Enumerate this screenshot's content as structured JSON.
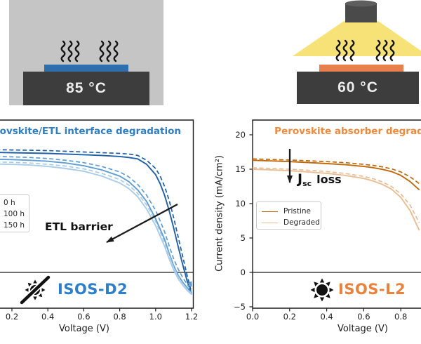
{
  "illustrations": {
    "dark_heat": {
      "temperature": "85 °C",
      "background": "#c5c5c5",
      "hotplate_color": "#3d3d3d",
      "sample_color": "#2f6fad"
    },
    "light_heat": {
      "temperature": "60 °C",
      "hotplate_color": "#3d3d3d",
      "sample_color": "#e8804e",
      "lamp_color": "#4a4a4a",
      "beam_color": "#f6e276"
    }
  },
  "chart_data": [
    {
      "id": "ISOS-D2",
      "type": "line",
      "title": "Perovskite/ETL interface degradation",
      "title_color": "#2d7ec4",
      "xlabel": "Voltage (V)",
      "x_ticks": [
        0.2,
        0.4,
        0.6,
        0.8,
        1.0,
        1.2
      ],
      "x_tick_labels": [
        "0.2",
        "0.4",
        "0.6",
        "0.8",
        "1.0",
        "1.2"
      ],
      "ylim": [
        -5.3,
        22.1
      ],
      "grid": false,
      "legend": {
        "position": "center-left",
        "entries": [
          "0 h",
          "100 h",
          "150 h"
        ]
      },
      "annotation": {
        "text": "ETL barrier"
      },
      "badge": {
        "label": "ISOS-D2",
        "icon": "crossed-sun-icon",
        "color": "#2e7fc9"
      },
      "x": [
        0,
        0.1,
        0.2,
        0.3,
        0.4,
        0.5,
        0.6,
        0.7,
        0.8,
        0.85,
        0.9,
        0.95,
        1.0,
        1.025,
        1.05,
        1.075,
        1.1,
        1.125,
        1.15,
        1.175,
        1.2
      ],
      "series": [
        {
          "name": "0 h",
          "style": "dashed",
          "color": "#1e5fa6",
          "y": [
            17.9,
            17.85,
            17.8,
            17.75,
            17.7,
            17.6,
            17.5,
            17.4,
            17.3,
            17.2,
            17.0,
            16.3,
            15.1,
            14.0,
            12.5,
            10.5,
            8.0,
            5.2,
            2.4,
            -0.4,
            -2.9
          ]
        },
        {
          "name": "0 h",
          "style": "solid",
          "color": "#1e5fa6",
          "y": [
            17.5,
            17.45,
            17.4,
            17.35,
            17.3,
            17.2,
            17.1,
            17.0,
            16.85,
            16.7,
            16.5,
            15.7,
            14.2,
            12.9,
            11.2,
            9.0,
            6.5,
            3.8,
            1.2,
            -1.2,
            -3.2
          ]
        },
        {
          "name": "100 h",
          "style": "dashed",
          "color": "#5f9dd3",
          "y": [
            16.9,
            16.85,
            16.8,
            16.7,
            16.55,
            16.3,
            15.95,
            15.4,
            14.6,
            13.9,
            12.8,
            11.2,
            9.0,
            7.5,
            5.9,
            3.9,
            2.0,
            0.5,
            -0.7,
            -1.7,
            -2.7
          ]
        },
        {
          "name": "100 h",
          "style": "solid",
          "color": "#5f9dd3",
          "y": [
            16.5,
            16.45,
            16.4,
            16.3,
            16.15,
            15.9,
            15.5,
            14.9,
            14.0,
            13.2,
            12.0,
            10.3,
            7.8,
            6.3,
            4.8,
            2.8,
            1.0,
            -0.4,
            -1.4,
            -2.2,
            -3.0
          ]
        },
        {
          "name": "150 h",
          "style": "dashed",
          "color": "#a9cce8",
          "y": [
            16.1,
            16.05,
            16.0,
            15.9,
            15.7,
            15.45,
            15.05,
            14.4,
            13.5,
            12.7,
            11.5,
            9.8,
            7.4,
            5.9,
            4.3,
            2.5,
            0.8,
            -0.6,
            -1.6,
            -2.4,
            -3.1
          ]
        },
        {
          "name": "150 h",
          "style": "solid",
          "color": "#a9cce8",
          "y": [
            15.8,
            15.75,
            15.7,
            15.6,
            15.4,
            15.1,
            14.7,
            14.0,
            13.0,
            12.2,
            11.0,
            9.2,
            6.8,
            5.3,
            3.8,
            2.0,
            0.4,
            -0.9,
            -1.8,
            -2.6,
            -3.2
          ]
        }
      ]
    },
    {
      "id": "ISOS-L2",
      "type": "line",
      "title": "Perovskite absorber degradation",
      "title_color": "#ed8a3d",
      "xlabel": "Voltage (V)",
      "ylabel": "Current density (mA/cm²)",
      "x_ticks": [
        0.0,
        0.2,
        0.4,
        0.6,
        0.8
      ],
      "x_tick_labels": [
        "0.0",
        "0.2",
        "0.4",
        "0.6",
        "0.8"
      ],
      "y_ticks": [
        20,
        15,
        10,
        5,
        0,
        -5
      ],
      "y_tick_labels": [
        "20",
        "15",
        "10",
        "5",
        "0",
        "−5"
      ],
      "ylim": [
        -5.3,
        22.1
      ],
      "grid": false,
      "legend": {
        "position": "center-left",
        "entries": [
          "Pristine",
          "Degraded"
        ],
        "entry_colors": [
          "#bf6a0c",
          "#eabd94"
        ]
      },
      "annotation": {
        "j": "J",
        "sub": "sc",
        "rest": "loss"
      },
      "badge": {
        "label": "ISOS-L2",
        "icon": "sun-icon",
        "color": "#e8823c"
      },
      "x": [
        0,
        0.1,
        0.2,
        0.3,
        0.4,
        0.5,
        0.6,
        0.65,
        0.7,
        0.75,
        0.8,
        0.85,
        0.9
      ],
      "series": [
        {
          "name": "Pristine",
          "style": "dashed",
          "color": "#bf6a0c",
          "y": [
            16.5,
            16.42,
            16.33,
            16.22,
            16.1,
            15.95,
            15.7,
            15.55,
            15.35,
            15.05,
            14.6,
            13.9,
            12.9
          ]
        },
        {
          "name": "Pristine",
          "style": "solid",
          "color": "#bf6a0c",
          "y": [
            16.3,
            16.2,
            16.1,
            15.97,
            15.82,
            15.65,
            15.4,
            15.22,
            14.98,
            14.65,
            14.1,
            13.2,
            12.0
          ]
        },
        {
          "name": "Degraded",
          "style": "dashed",
          "color": "#eabd94",
          "y": [
            15.2,
            15.1,
            15.0,
            14.85,
            14.65,
            14.38,
            13.95,
            13.62,
            13.15,
            12.5,
            11.4,
            9.8,
            7.2
          ]
        },
        {
          "name": "Degraded",
          "style": "solid",
          "color": "#eabd94",
          "y": [
            15.0,
            14.9,
            14.78,
            14.6,
            14.4,
            14.1,
            13.65,
            13.3,
            12.8,
            12.1,
            10.9,
            9.0,
            6.1
          ]
        }
      ]
    }
  ]
}
